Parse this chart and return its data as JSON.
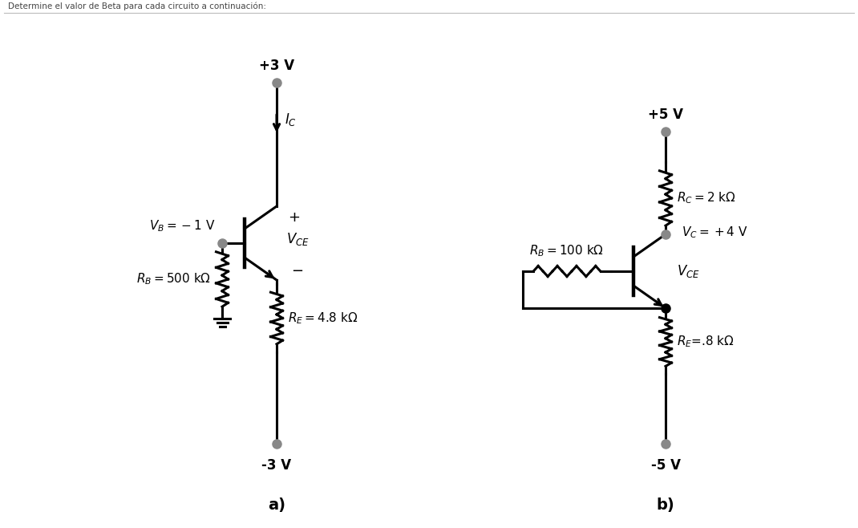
{
  "title": "Determine el valor de Beta para cada circuito a continuación:",
  "bg_color": "#ffffff",
  "fig_width": 10.7,
  "fig_height": 6.58,
  "circuit_a": {
    "label": "a)",
    "vcc_label": "+3 V",
    "vee_label": "-3 V",
    "vb_label": "$V_B =-1$ V",
    "rb_label": "$R_B = 500$ kΩ",
    "re_label": "$R_E = 4.8$ kΩ",
    "ic_label": "$I_C$",
    "vce_label": "$V_{CE}$",
    "plus_label": "+",
    "minus_label": "−"
  },
  "circuit_b": {
    "label": "b)",
    "vcc_label": "+5 V",
    "vee_label": "-5 V",
    "vc_label": "$V_C = +4$ V",
    "rb_label": "$R_B = 100$ kΩ",
    "rc_label": "$R_C = 2$ kΩ",
    "re_label": "$R_E$=.8 kΩ",
    "vce_label": "$V_{CE}$"
  }
}
